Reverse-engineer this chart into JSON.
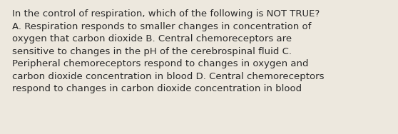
{
  "background_color": "#ede8de",
  "text_color": "#2a2a2a",
  "text": "In the control of respiration, which of the following is NOT TRUE?\nA. Respiration responds to smaller changes in concentration of\noxygen that carbon dioxide B. Central chemoreceptors are\nsensitive to changes in the pH of the cerebrospinal fluid C.\nPeripheral chemoreceptors respond to changes in oxygen and\ncarbon dioxide concentration in blood D. Central chemoreceptors\nrespond to changes in carbon dioxide concentration in blood",
  "font_size": 9.5,
  "fig_width": 5.58,
  "fig_height": 1.88,
  "dpi": 100,
  "linespacing": 1.45
}
